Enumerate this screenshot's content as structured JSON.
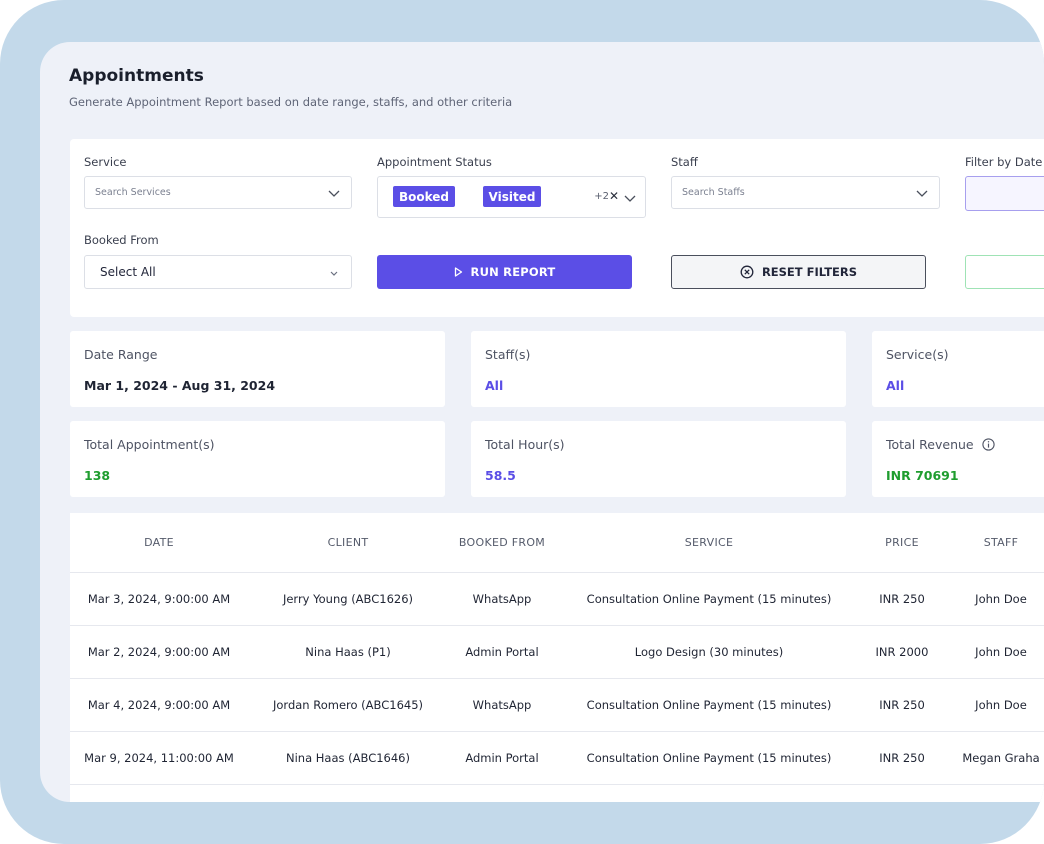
{
  "header": {
    "title": "Appointments",
    "subtitle": "Generate Appointment Report based on date range, staffs, and other criteria"
  },
  "filters": {
    "service": {
      "label": "Service",
      "placeholder": "Search Services"
    },
    "status": {
      "label": "Appointment Status",
      "chips": [
        "Booked",
        "Visited"
      ],
      "more": "+2"
    },
    "staff": {
      "label": "Staff",
      "placeholder": "Search Staffs"
    },
    "date": {
      "label": "Filter by Date"
    },
    "booked_from": {
      "label": "Booked From",
      "value": "Select All"
    },
    "run_report_label": "RUN REPORT",
    "reset_filters_label": "RESET FILTERS"
  },
  "summary": {
    "date_range": {
      "label": "Date Range",
      "value": "Mar 1, 2024 - Aug 31, 2024"
    },
    "staffs": {
      "label": "Staff(s)",
      "value": "All"
    },
    "services": {
      "label": "Service(s)",
      "value": "All"
    },
    "total_appointments": {
      "label": "Total Appointment(s)",
      "value": "138"
    },
    "total_hours": {
      "label": "Total Hour(s)",
      "value": "58.5"
    },
    "total_revenue": {
      "label": "Total Revenue",
      "value": "INR 70691"
    }
  },
  "table": {
    "columns": [
      "DATE",
      "CLIENT",
      "BOOKED FROM",
      "SERVICE",
      "PRICE",
      "STAFF"
    ],
    "rows": [
      [
        "Mar 3, 2024, 9:00:00 AM",
        "Jerry Young (ABC1626)",
        "WhatsApp",
        "Consultation Online Payment (15 minutes)",
        "INR 250",
        "John Doe"
      ],
      [
        "Mar 2, 2024, 9:00:00 AM",
        "Nina Haas (P1)",
        "Admin Portal",
        "Logo Design (30 minutes)",
        "INR 2000",
        "John Doe"
      ],
      [
        "Mar 4, 2024, 9:00:00 AM",
        "Jordan Romero (ABC1645)",
        "WhatsApp",
        "Consultation Online Payment (15 minutes)",
        "INR 250",
        "John Doe"
      ],
      [
        "Mar 9, 2024, 11:00:00 AM",
        "Nina Haas (ABC1646)",
        "Admin Portal",
        "Consultation Online Payment (15 minutes)",
        "INR 250",
        "Megan Graha"
      ]
    ]
  },
  "colors": {
    "accent": "#5b4ee6",
    "positive": "#1f9d2f",
    "frame": "#c3d9ea",
    "page_bg": "#eef1f8"
  }
}
